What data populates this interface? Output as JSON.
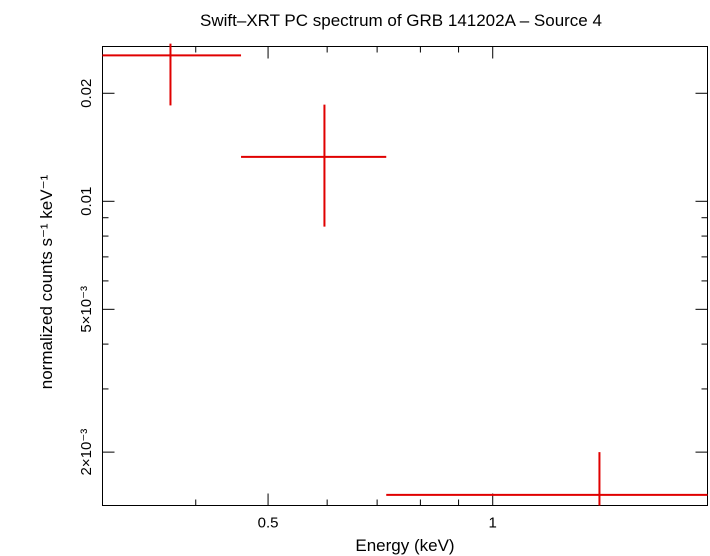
{
  "chart_data": {
    "type": "scatter",
    "title": "Swift–XRT PC spectrum of GRB 141202A – Source 4",
    "xlabel": "Energy (keV)",
    "ylabel": "normalized counts s⁻¹ keV⁻¹",
    "xscale": "log",
    "yscale": "log",
    "xlim": [
      0.3,
      1.94
    ],
    "ylim": [
      0.00142,
      0.027
    ],
    "grid": false,
    "x_tick_labels": [
      {
        "value": 0.5,
        "label": "0.5"
      },
      {
        "value": 1,
        "label": "1"
      }
    ],
    "y_tick_labels": [
      {
        "value": 0.002,
        "label": "2×10⁻³"
      },
      {
        "value": 0.005,
        "label": "5×10⁻³"
      },
      {
        "value": 0.01,
        "label": "0.01"
      },
      {
        "value": 0.02,
        "label": "0.02"
      }
    ],
    "series": [
      {
        "color": "#e00000",
        "points": [
          {
            "x": 0.37,
            "xlo": 0.3,
            "xhi": 0.46,
            "y": 0.0255,
            "ylo": 0.0185,
            "yhi": 0.0275
          },
          {
            "x": 0.595,
            "xlo": 0.46,
            "xhi": 0.72,
            "y": 0.0133,
            "ylo": 0.0085,
            "yhi": 0.0186
          },
          {
            "x": 1.39,
            "xlo": 0.72,
            "xhi": 1.94,
            "y": 0.00152,
            "ylo": 0.00142,
            "yhi": 0.002
          }
        ]
      }
    ]
  }
}
